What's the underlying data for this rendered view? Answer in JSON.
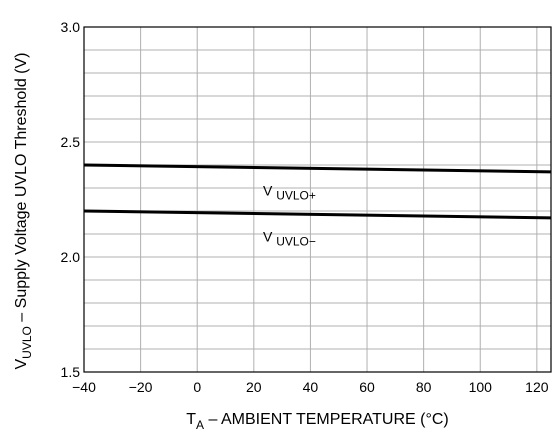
{
  "chart_data": {
    "type": "line",
    "xlabel": {
      "main": "T",
      "sub": "A",
      "rest": " – AMBIENT TEMPERATURE (°C)"
    },
    "ylabel": {
      "main": "V",
      "sub": "UVLO",
      "rest": " – Supply Voltage UVLO Threshold (V)"
    },
    "xlim": [
      -40,
      125
    ],
    "ylim": [
      1.5,
      3.0
    ],
    "x_ticks": [
      -40,
      -20,
      0,
      20,
      40,
      60,
      80,
      100,
      120
    ],
    "x_tick_labels": [
      "−40",
      "−20",
      "0",
      "20",
      "40",
      "60",
      "80",
      "100",
      "120"
    ],
    "y_ticks": [
      1.5,
      2.0,
      2.5,
      3.0
    ],
    "y_tick_labels": [
      "1.5",
      "2.0",
      "2.5",
      "3.0"
    ],
    "grid": true,
    "series": [
      {
        "name": "V UVLO+",
        "label_main": "V",
        "label_sub": "UVLO+",
        "x": [
          -40,
          125
        ],
        "values": [
          2.4,
          2.37
        ]
      },
      {
        "name": "V UVLO−",
        "label_main": "V",
        "label_sub": "UVLO−",
        "x": [
          -40,
          125
        ],
        "values": [
          2.2,
          2.17
        ]
      }
    ]
  }
}
